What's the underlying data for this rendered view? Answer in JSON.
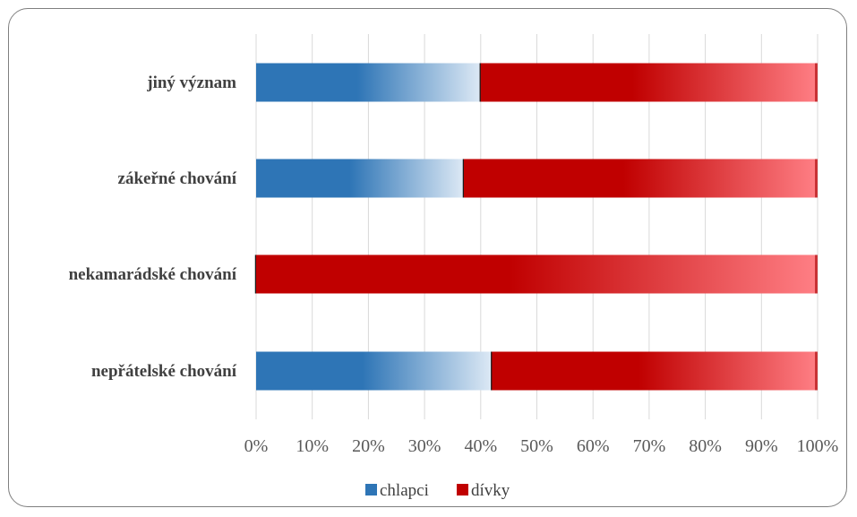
{
  "chart_data": {
    "type": "bar",
    "orientation": "horizontal",
    "stacked": "percent",
    "categories": [
      "jiný význam",
      "zákeřné chování",
      "nekamarádské chování",
      "nepřátelské chování"
    ],
    "series": [
      {
        "name": "chlapci",
        "values": [
          40,
          37,
          0,
          42
        ]
      },
      {
        "name": "dívky",
        "values": [
          60,
          63,
          100,
          58
        ]
      }
    ],
    "xlim": [
      0,
      100
    ],
    "x_ticks": [
      "0%",
      "10%",
      "20%",
      "30%",
      "40%",
      "50%",
      "60%",
      "70%",
      "80%",
      "90%",
      "100%"
    ],
    "grid": "vertical",
    "legend_position": "bottom",
    "colors": {
      "chlapci": "#2e75b6",
      "dívky": "#c00000"
    }
  }
}
